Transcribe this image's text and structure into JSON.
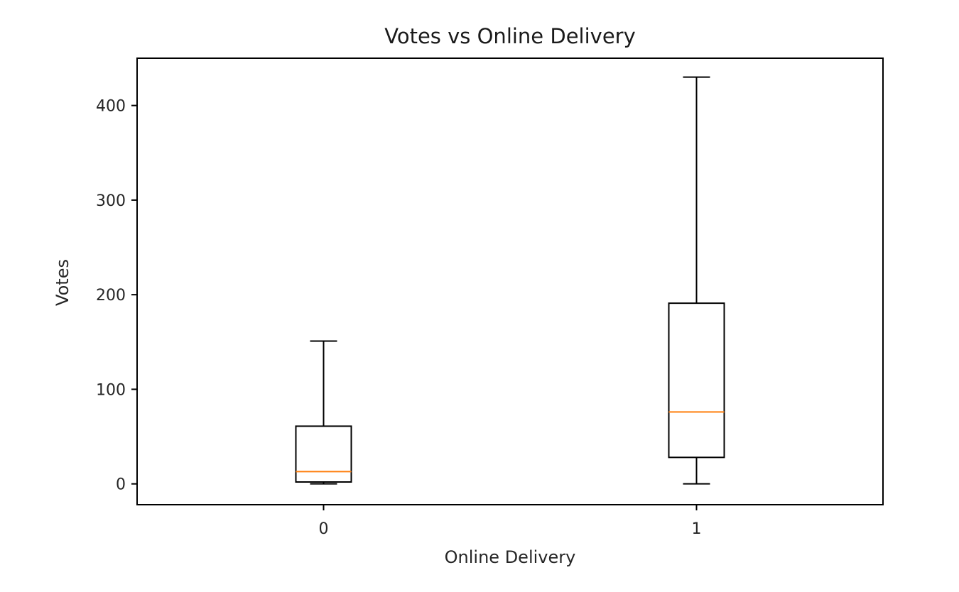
{
  "chart_data": {
    "type": "box",
    "title": "Votes vs Online Delivery",
    "xlabel": "Online Delivery",
    "ylabel": "Votes",
    "categories": [
      "0",
      "1"
    ],
    "ylim": [
      -22,
      450
    ],
    "yticks": [
      0,
      100,
      200,
      300,
      400
    ],
    "boxes": [
      {
        "category": "0",
        "whisker_low": 0,
        "q1": 2,
        "median": 13,
        "q3": 61,
        "whisker_high": 151
      },
      {
        "category": "1",
        "whisker_low": 0,
        "q1": 28,
        "median": 76,
        "q3": 191,
        "whisker_high": 430
      }
    ],
    "grid": false,
    "colors": {
      "box": "#000000",
      "median": "#ff7f0e"
    }
  }
}
